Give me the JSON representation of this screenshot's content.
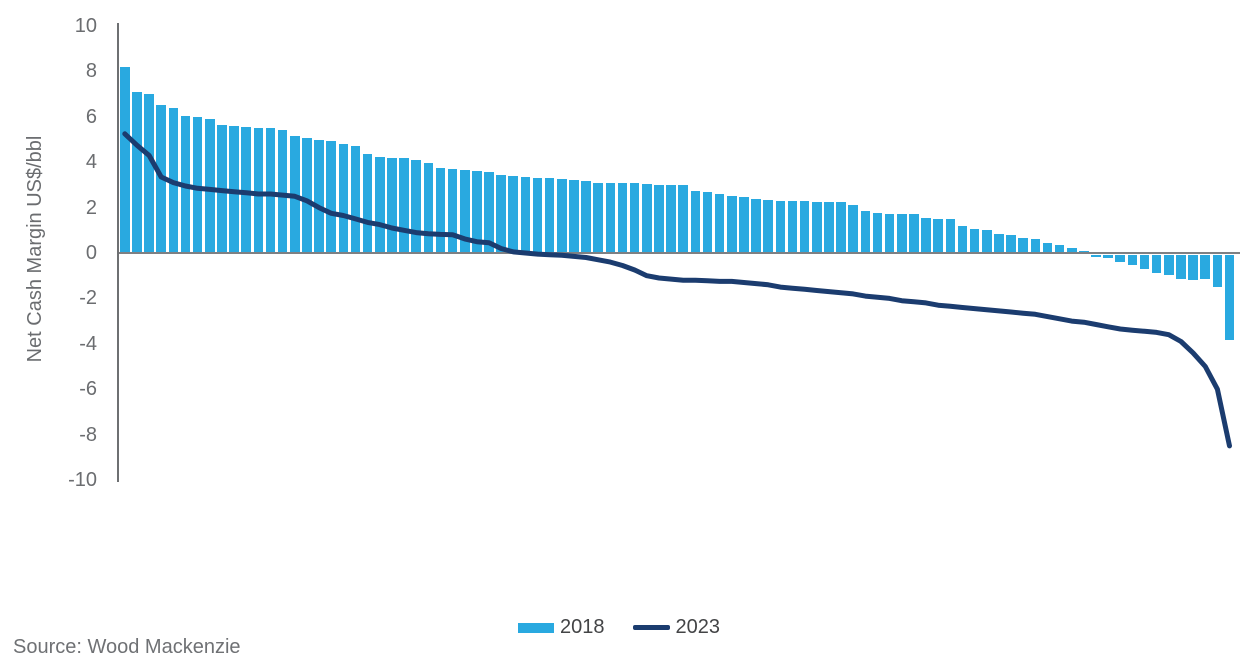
{
  "chart_data": {
    "type": "bar",
    "title": "",
    "xlabel": "",
    "ylabel": "Net Cash Margin US$/bbl",
    "ylim": [
      -10,
      10
    ],
    "yticks": [
      10,
      8,
      6,
      4,
      2,
      0,
      -2,
      -4,
      -6,
      -8,
      -10
    ],
    "grid": false,
    "legend_position": "bottom-center",
    "x_axis_labels": "none (individual assets, unlabeled)",
    "series": [
      {
        "name": "2018",
        "type": "bar",
        "color": "#29a9e0",
        "values": [
          8.2,
          7.1,
          7.0,
          6.5,
          6.4,
          6.05,
          6.0,
          5.9,
          5.65,
          5.6,
          5.55,
          5.5,
          5.5,
          5.4,
          5.15,
          5.05,
          5.0,
          4.95,
          4.8,
          4.7,
          4.35,
          4.25,
          4.2,
          4.2,
          4.1,
          3.95,
          3.75,
          3.7,
          3.65,
          3.6,
          3.55,
          3.45,
          3.4,
          3.35,
          3.3,
          3.3,
          3.25,
          3.2,
          3.15,
          3.1,
          3.1,
          3.1,
          3.1,
          3.05,
          3.0,
          3.0,
          3.0,
          2.75,
          2.7,
          2.6,
          2.5,
          2.45,
          2.4,
          2.35,
          2.3,
          2.3,
          2.3,
          2.25,
          2.25,
          2.25,
          2.1,
          1.85,
          1.75,
          1.7,
          1.7,
          1.7,
          1.55,
          1.5,
          1.5,
          1.2,
          1.05,
          1.0,
          0.85,
          0.8,
          0.65,
          0.6,
          0.45,
          0.35,
          0.2,
          0.1,
          -0.1,
          -0.15,
          -0.3,
          -0.45,
          -0.6,
          -0.8,
          -0.9,
          -1.05,
          -1.1,
          -1.05,
          -1.4,
          -3.75
        ]
      },
      {
        "name": "2023",
        "type": "line",
        "color": "#1b3c6f",
        "values": [
          5.25,
          4.75,
          4.3,
          3.35,
          3.1,
          2.95,
          2.85,
          2.8,
          2.75,
          2.7,
          2.65,
          2.6,
          2.6,
          2.55,
          2.5,
          2.3,
          2.0,
          1.75,
          1.65,
          1.5,
          1.35,
          1.25,
          1.1,
          1.0,
          0.9,
          0.85,
          0.82,
          0.8,
          0.62,
          0.5,
          0.45,
          0.2,
          0.05,
          0.0,
          -0.05,
          -0.08,
          -0.1,
          -0.15,
          -0.2,
          -0.3,
          -0.4,
          -0.55,
          -0.75,
          -1.0,
          -1.1,
          -1.15,
          -1.2,
          -1.2,
          -1.22,
          -1.25,
          -1.25,
          -1.3,
          -1.35,
          -1.4,
          -1.5,
          -1.55,
          -1.6,
          -1.65,
          -1.7,
          -1.75,
          -1.8,
          -1.9,
          -1.95,
          -2.0,
          -2.1,
          -2.15,
          -2.2,
          -2.3,
          -2.35,
          -2.4,
          -2.45,
          -2.5,
          -2.55,
          -2.6,
          -2.65,
          -2.7,
          -2.8,
          -2.9,
          -3.0,
          -3.05,
          -3.15,
          -3.25,
          -3.35,
          -3.4,
          -3.45,
          -3.5,
          -3.6,
          -3.9,
          -4.4,
          -5.0,
          -6.0,
          -8.5
        ]
      }
    ]
  },
  "legend": {
    "item_2018": "2018",
    "item_2023": "2023"
  },
  "source": {
    "label": "Source: Wood Mackenzie"
  },
  "colors": {
    "bar_2018": "#29a9e0",
    "line_2023": "#1b3c6f",
    "axis": "#6e7072",
    "zero_line": "#7e8083",
    "tick_text": "#6b6d70",
    "legend_text": "#434446",
    "source_text": "#6f7174",
    "background": "#ffffff"
  }
}
